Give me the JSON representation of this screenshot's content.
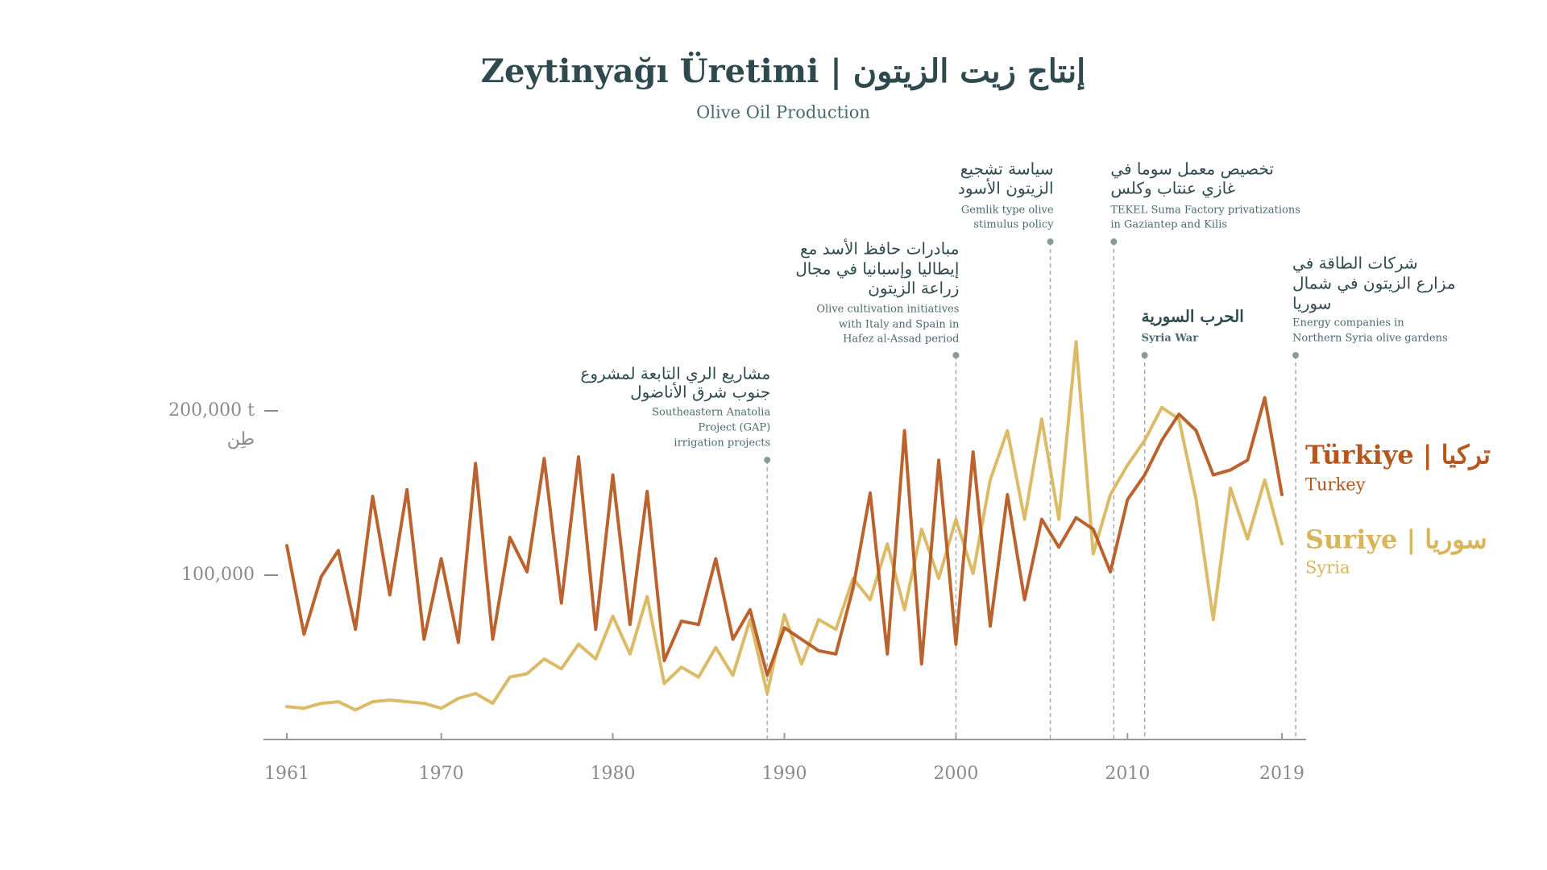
{
  "chart_data": {
    "type": "line",
    "title": "Zeytinyağı Üretimi  |  إنتاج زيت الزيتون",
    "subtitle": "Olive Oil Production",
    "x": [
      1961,
      1962,
      1963,
      1964,
      1965,
      1966,
      1967,
      1968,
      1969,
      1970,
      1971,
      1972,
      1973,
      1974,
      1975,
      1976,
      1977,
      1978,
      1979,
      1980,
      1981,
      1982,
      1983,
      1984,
      1985,
      1986,
      1987,
      1988,
      1989,
      1990,
      1991,
      1992,
      1993,
      1994,
      1995,
      1996,
      1997,
      1998,
      1999,
      2000,
      2001,
      2002,
      2003,
      2004,
      2005,
      2006,
      2007,
      2008,
      2009,
      2010,
      2011,
      2012,
      2013,
      2014,
      2015,
      2016,
      2017,
      2018,
      2019
    ],
    "series": [
      {
        "name": "Türkiye | تركيا",
        "subname": "Turkey",
        "color": "#b5561c",
        "values": [
          118000,
          64000,
          99000,
          115000,
          67000,
          148000,
          88000,
          152000,
          61000,
          110000,
          59000,
          168000,
          61000,
          123000,
          102000,
          171000,
          83000,
          172000,
          67000,
          161000,
          70000,
          151000,
          48000,
          72000,
          70000,
          110000,
          61000,
          79000,
          39000,
          68000,
          61000,
          54000,
          52000,
          92000,
          150000,
          52000,
          188000,
          46000,
          170000,
          58000,
          175000,
          69000,
          149000,
          85000,
          134000,
          117000,
          135000,
          128000,
          102000,
          146000,
          161000,
          182000,
          198000,
          188000,
          161000,
          164000,
          170000,
          208000,
          149000
        ]
      },
      {
        "name": "Suriye | سوريا",
        "subname": "Syria",
        "color": "#d8b55a",
        "values": [
          20000,
          19000,
          22000,
          23000,
          18000,
          23000,
          24000,
          23000,
          22000,
          19000,
          25000,
          28000,
          22000,
          38000,
          40000,
          49000,
          43000,
          58000,
          49000,
          75000,
          52000,
          87000,
          34000,
          44000,
          38000,
          56000,
          39000,
          73000,
          28000,
          76000,
          46000,
          73000,
          67000,
          98000,
          85000,
          119000,
          79000,
          128000,
          98000,
          134000,
          101000,
          158000,
          188000,
          134000,
          195000,
          134000,
          242000,
          113000,
          149000,
          167000,
          182000,
          202000,
          195000,
          146000,
          73000,
          153000,
          122000,
          158000,
          119000
        ]
      }
    ],
    "xlim": [
      1961,
      2019
    ],
    "xticks": [
      1961,
      1970,
      1980,
      1990,
      2000,
      2010,
      2019
    ],
    "ylim": [
      0,
      250000
    ],
    "yticks": [
      {
        "value": 100000,
        "label": "100,000"
      },
      {
        "value": 200000,
        "label": "200,000 t"
      }
    ],
    "y_unit": "طِن",
    "annotations": [
      {
        "x": 1989,
        "text_ar": [
          "مشاريع الري التابعة لمشروع",
          "جنوب شرق الأناضول"
        ],
        "text_en": [
          "Southeastern Anatolia",
          "Project (GAP)",
          "irrigation projects"
        ]
      },
      {
        "x": 2000,
        "text_ar": [
          "مبادرات حافظ الأسد مع",
          "إيطاليا وإسبانيا في مجال",
          "زراعة الزيتون"
        ],
        "text_en": [
          "Olive cultivation initiatives",
          "with Italy and Spain in",
          "Hafez al-Assad period"
        ]
      },
      {
        "x": 2005.5,
        "text_ar": [
          "سياسة تشجيع",
          "الزيتون الأسود"
        ],
        "text_en": [
          "Gemlik type olive",
          "stimulus policy"
        ]
      },
      {
        "x": 2009.2,
        "text_ar": [
          "تخصيص معمل سوما في",
          "غازي عنتاب وكلس"
        ],
        "text_en": [
          "TEKEL Suma Factory privatizations",
          "in Gaziantep and Kilis"
        ]
      },
      {
        "x": 2011,
        "text_ar": [
          "الحرب السورية"
        ],
        "text_en": [
          "Syria War"
        ]
      },
      {
        "x": 2019.8,
        "text_ar": [
          "شركات الطاقة في",
          "مزارع الزيتون في شمال",
          "سوريا"
        ],
        "text_en": [
          "Energy companies in",
          "Northern Syria olive gardens"
        ]
      }
    ]
  }
}
